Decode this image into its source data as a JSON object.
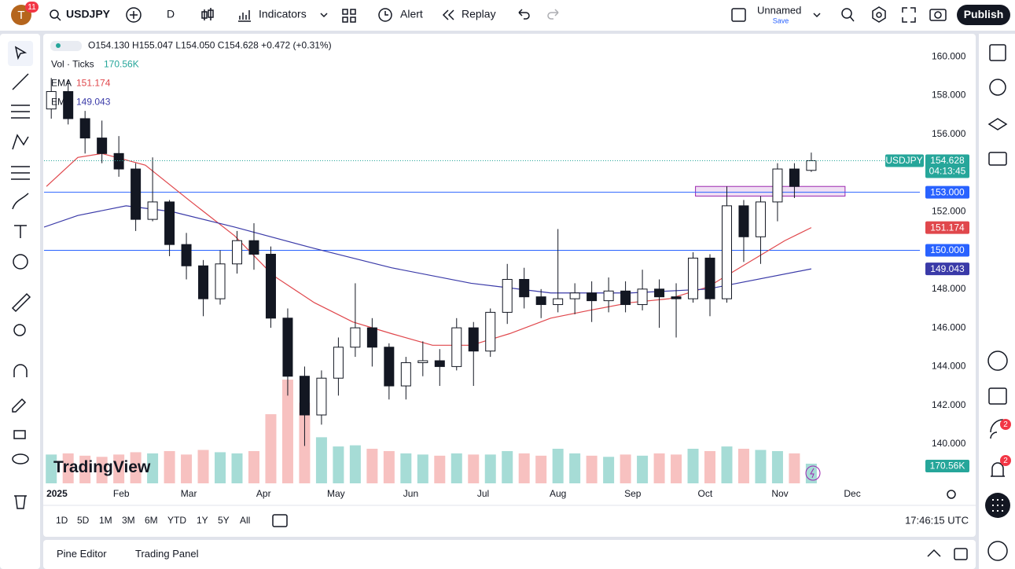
{
  "toolbar": {
    "avatar": "T",
    "avatar_badge": "11",
    "symbol": "USDJPY",
    "interval": "D",
    "indicators": "Indicators",
    "alert": "Alert",
    "replay": "Replay",
    "layout_name": "Unnamed",
    "save": "Save",
    "publish": "Publish"
  },
  "legend": {
    "ohlc": "O154.130 H155.047 L154.050 C154.628 +0.472 (+0.31%)",
    "volume_name": "Vol · Ticks",
    "volume_value": "170.56K"
  },
  "chart_data": {
    "type": "candlestick",
    "x": [
      2,
      9,
      16,
      23,
      30,
      37,
      44,
      51,
      58,
      65,
      72,
      79,
      86,
      93,
      100,
      107,
      114,
      121,
      128,
      135,
      142,
      149,
      156,
      163,
      170,
      177,
      184,
      191,
      198,
      205,
      212,
      219,
      226,
      233,
      240,
      247,
      254,
      261,
      268,
      275,
      282,
      289,
      296,
      303,
      310,
      317
    ],
    "open": [
      157.3,
      158.2,
      156.8,
      155.8,
      155.0,
      154.2,
      151.6,
      152.5,
      150.3,
      149.2,
      147.5,
      149.3,
      150.5,
      149.8,
      146.5,
      143.5,
      141.5,
      143.4,
      145.0,
      146.0,
      145.0,
      143.0,
      144.2,
      144.3,
      144.0,
      146.0,
      144.8,
      146.8,
      148.5,
      147.6,
      147.2,
      147.5,
      147.8,
      147.4,
      147.9,
      147.2,
      148.0,
      147.6,
      147.5,
      149.6,
      147.5,
      152.3,
      150.7,
      152.5,
      154.2,
      154.13
    ],
    "high": [
      158.9,
      158.8,
      157.2,
      156.7,
      155.9,
      154.5,
      154.8,
      152.6,
      150.9,
      149.5,
      150.0,
      151.0,
      151.4,
      150.2,
      147.0,
      144.0,
      143.8,
      145.5,
      148.3,
      146.5,
      145.2,
      144.5,
      145.3,
      144.9,
      146.5,
      146.3,
      147.0,
      149.3,
      149.1,
      148.0,
      151.1,
      148.3,
      148.4,
      148.6,
      148.4,
      149.0,
      148.5,
      148.3,
      149.9,
      149.8,
      153.3,
      152.6,
      152.8,
      154.5,
      154.5,
      155.047
    ],
    "low": [
      156.8,
      156.5,
      155.0,
      154.5,
      153.8,
      151.0,
      151.5,
      149.7,
      148.5,
      146.6,
      147.2,
      148.8,
      149.0,
      146.0,
      142.5,
      139.9,
      141.0,
      142.5,
      144.5,
      144.0,
      142.3,
      142.3,
      143.5,
      143.0,
      143.8,
      143.0,
      144.5,
      146.2,
      147.0,
      146.5,
      146.8,
      146.7,
      146.3,
      146.8,
      146.8,
      146.9,
      146.0,
      145.5,
      147.3,
      146.6,
      147.3,
      149.4,
      149.3,
      151.5,
      152.7,
      154.05
    ],
    "close": [
      158.2,
      156.8,
      155.8,
      155.0,
      154.2,
      151.6,
      152.5,
      150.3,
      149.2,
      147.5,
      149.3,
      150.5,
      149.8,
      146.5,
      143.5,
      141.5,
      143.4,
      145.0,
      146.0,
      145.0,
      143.0,
      144.2,
      144.3,
      144.0,
      146.0,
      144.8,
      146.8,
      148.5,
      147.6,
      147.2,
      147.5,
      147.8,
      147.4,
      147.9,
      147.2,
      148.0,
      147.6,
      147.5,
      149.6,
      147.5,
      152.3,
      150.7,
      152.5,
      154.2,
      153.3,
      154.628
    ],
    "volume": [
      250,
      260,
      240,
      230,
      250,
      270,
      260,
      280,
      250,
      290,
      270,
      260,
      280,
      600,
      900,
      700,
      400,
      320,
      330,
      300,
      280,
      260,
      250,
      240,
      260,
      250,
      250,
      280,
      260,
      240,
      300,
      260,
      240,
      230,
      250,
      240,
      260,
      250,
      300,
      280,
      320,
      300,
      290,
      280,
      260,
      170.56
    ],
    "up_color": "#ffffff",
    "down_color": "#131722",
    "volume_up_color": "#a6dcd6",
    "volume_down_color": "#f7c1c0",
    "series": [
      {
        "name": "EMA",
        "color": "#e0474c",
        "x": [
          0,
          13,
          23,
          41,
          59,
          78,
          94,
          111,
          127,
          143,
          160,
          176,
          192,
          209,
          225,
          242,
          258,
          274,
          290,
          306,
          317
        ],
        "values": [
          153.3,
          154.8,
          155.0,
          154.4,
          152.6,
          150.75,
          148.7,
          147.3,
          146.3,
          145.7,
          145.1,
          145.1,
          145.7,
          146.5,
          146.9,
          147.3,
          147.5,
          148.1,
          149.3,
          150.5,
          151.174
        ]
      },
      {
        "name": "EMA",
        "color": "#3a3aa8",
        "x": [
          -1,
          13,
          33,
          52,
          78,
          111,
          143,
          176,
          209,
          242,
          274,
          317
        ],
        "values": [
          151.2,
          151.8,
          152.3,
          152.0,
          151.2,
          150.1,
          149.1,
          148.3,
          147.8,
          147.8,
          148.0,
          149.043
        ]
      }
    ],
    "price_lines": [
      {
        "value": 153,
        "label": "153.000",
        "color": "#2962ff"
      },
      {
        "value": 150,
        "label": "150.000",
        "color": "#2962ff"
      }
    ],
    "zone": {
      "x": [
        269,
        331
      ],
      "y": [
        152.8,
        153.3
      ],
      "color": "#9c27b0"
    },
    "countdown": "04:13:45",
    "xlim": [
      -1,
      362
    ],
    "ylim": [
      137.97,
      161.1
    ],
    "xticks": [
      {
        "value": 0,
        "label": "2025"
      },
      {
        "value": 31,
        "label": "Feb"
      },
      {
        "value": 59,
        "label": "Mar"
      },
      {
        "value": 90,
        "label": "Apr"
      },
      {
        "value": 120,
        "label": "May"
      },
      {
        "value": 151,
        "label": "Jun"
      },
      {
        "value": 181,
        "label": "Jul"
      },
      {
        "value": 212,
        "label": "Aug"
      },
      {
        "value": 243,
        "label": "Sep"
      },
      {
        "value": 273,
        "label": "Oct"
      },
      {
        "value": 304,
        "label": "Nov"
      },
      {
        "value": 334,
        "label": "Dec"
      }
    ],
    "yticks": [
      {
        "value": 140,
        "label": "140.000"
      },
      {
        "value": 142,
        "label": "142.000"
      },
      {
        "value": 144,
        "label": "144.000"
      },
      {
        "value": 146,
        "label": "146.000"
      },
      {
        "value": 148,
        "label": "148.000"
      },
      {
        "value": 152,
        "label": "152.000"
      },
      {
        "value": 156,
        "label": "156.000"
      },
      {
        "value": 158,
        "label": "158.000"
      },
      {
        "value": 160,
        "label": "160.000"
      }
    ]
  },
  "watermark": "TradingView",
  "ranges": [
    "1D",
    "5D",
    "1M",
    "3M",
    "6M",
    "YTD",
    "1Y",
    "5Y",
    "All"
  ],
  "clock": "17:46:15 UTC",
  "panels": [
    "Pine Editor",
    "Trading Panel"
  ],
  "sidebar": {
    "badges": [
      "2",
      "2"
    ]
  }
}
